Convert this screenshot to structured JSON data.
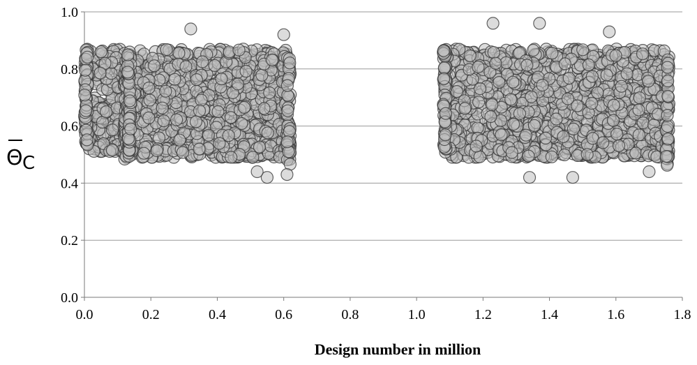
{
  "chart_data": {
    "type": "scatter",
    "title": "",
    "xlabel": "Design number in million",
    "ylabel": "Θ",
    "ylabel_subscript": "C",
    "ylabel_overline": true,
    "xlim": [
      0.0,
      1.8
    ],
    "ylim": [
      0.0,
      1.0
    ],
    "x_ticks": [
      "0.0",
      "0.2",
      "0.4",
      "0.6",
      "0.8",
      "1.0",
      "1.2",
      "1.4",
      "1.6",
      "1.8"
    ],
    "y_ticks": [
      "0.0",
      "0.2",
      "0.4",
      "0.6",
      "0.8",
      "1.0"
    ],
    "grid": "horizontal",
    "legend": "none",
    "marker_fill": "#c0c0c0",
    "marker_edge": "#3a3a3a",
    "clusters": [
      {
        "x_range": [
          0.0,
          0.13
        ],
        "y_range": [
          0.51,
          0.87
        ],
        "points": 260,
        "y_top": [
          0.88,
          0.9
        ]
      },
      {
        "x_range": [
          0.13,
          0.62
        ],
        "y_range": [
          0.49,
          0.87
        ],
        "points": 1100,
        "extremes": [
          [
            0.32,
            0.94
          ],
          [
            0.6,
            0.92
          ],
          [
            0.55,
            0.42
          ],
          [
            0.61,
            0.43
          ],
          [
            0.52,
            0.44
          ]
        ]
      },
      {
        "x_range": [
          1.08,
          1.76
        ],
        "y_range": [
          0.49,
          0.87
        ],
        "points": 1500,
        "extremes": [
          [
            1.23,
            0.96
          ],
          [
            1.37,
            0.96
          ],
          [
            1.58,
            0.93
          ],
          [
            1.34,
            0.42
          ],
          [
            1.47,
            0.42
          ],
          [
            1.7,
            0.44
          ]
        ]
      }
    ]
  }
}
